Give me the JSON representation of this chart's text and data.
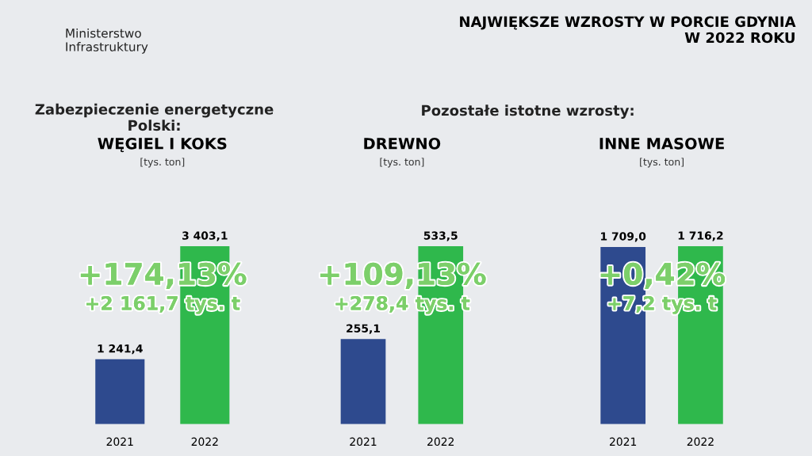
{
  "chart_data": [
    {
      "type": "other",
      "title": "NAJWIĘKSZE WZROSTY W PORCIE GDYNIA\nW 2022 ROKU",
      "annotations": [
        "Ministerstwo\nInfrastruktury",
        "Zabezpieczenie energetyczne\nPolski:",
        "Pozostałe istotne wzrosty:"
      ]
    },
    {
      "type": "bar",
      "title": "WĘGIEL I KOKS",
      "subtitle": "[tys. ton]",
      "categories": [
        "2021",
        "2022"
      ],
      "values": [
        1241.4,
        3403.1
      ],
      "colors": [
        "#2e4a8e",
        "#2fb84c"
      ],
      "value_labels": [
        "1 241,4",
        "3 403,1"
      ],
      "annotations": [
        "+174,13%",
        "+2 161,7 tys. t"
      ]
    },
    {
      "type": "bar",
      "title": "DREWNO",
      "subtitle": "[tys. ton]",
      "categories": [
        "2021",
        "2022"
      ],
      "values": [
        255.1,
        533.5
      ],
      "colors": [
        "#2e4a8e",
        "#2fb84c"
      ],
      "value_labels": [
        "255,1",
        "533,5"
      ],
      "annotations": [
        "+109,13%",
        "+278,4 tys. t"
      ]
    },
    {
      "type": "bar",
      "title": "INNE MASOWE",
      "subtitle": "[tys. ton]",
      "categories": [
        "2021",
        "2022"
      ],
      "values": [
        1709.0,
        1716.2
      ],
      "colors": [
        "#2e4a8e",
        "#2fb84c"
      ],
      "value_labels": [
        "1 709,0",
        "1 716,2"
      ],
      "annotations": [
        "+0,42%",
        "+7,2 tys. t"
      ]
    }
  ]
}
